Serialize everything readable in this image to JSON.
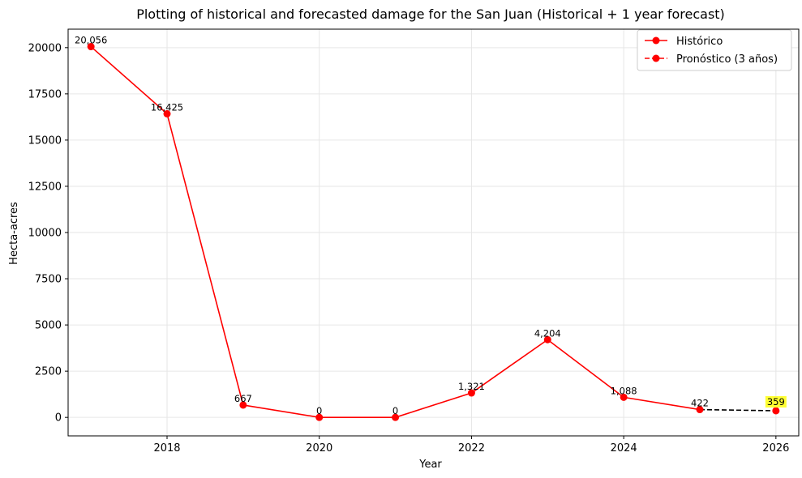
{
  "chart_data": {
    "type": "line",
    "title": "Plotting of historical and forecasted damage for the San Juan (Historical + 1 year forecast)",
    "xlabel": "Year",
    "ylabel": "Hecta-acres",
    "xlim": [
      2016.7,
      2026.3
    ],
    "ylim": [
      -1000,
      21000
    ],
    "xticks": [
      2018,
      2020,
      2022,
      2024,
      2026
    ],
    "yticks": [
      0,
      2500,
      5000,
      7500,
      10000,
      12500,
      15000,
      17500,
      20000
    ],
    "grid": true,
    "legend_position": "top-right",
    "series": [
      {
        "name": "Histórico",
        "style": "solid",
        "color": "#ff0000",
        "x": [
          2017,
          2018,
          2019,
          2020,
          2021,
          2022,
          2023,
          2024,
          2025
        ],
        "y": [
          20056,
          16425,
          667,
          0,
          0,
          1321,
          4204,
          1088,
          422
        ],
        "labels": [
          "20,056",
          "16,425",
          "667",
          "0",
          "0",
          "1,321",
          "4,204",
          "1,088",
          "422"
        ]
      },
      {
        "name": "Pronóstico (3 años)",
        "style": "dashed",
        "color": "#ff0000",
        "line_color": "#000000",
        "x": [
          2025,
          2026
        ],
        "y": [
          422,
          359
        ],
        "labels": [
          "",
          "359"
        ],
        "highlight_color": "#ffff33"
      }
    ]
  }
}
